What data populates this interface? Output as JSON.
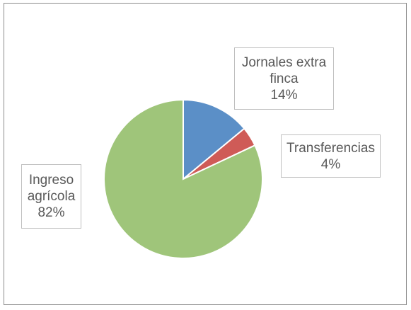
{
  "chart_data": {
    "type": "pie",
    "categories": [
      "Jornales extra finca",
      "Transferencias",
      "Ingreso agrícola"
    ],
    "values": [
      14,
      4,
      82
    ],
    "labels": [
      {
        "lines": [
          "Jornales extra",
          "finca"
        ],
        "pct": "14%"
      },
      {
        "lines": [
          "Transferencias"
        ],
        "pct": "4%"
      },
      {
        "lines": [
          "Ingreso",
          "agrícola"
        ],
        "pct": "82%"
      }
    ],
    "colors": [
      "#5b8fc7",
      "#cf5b57",
      "#9fc57a"
    ],
    "title": "",
    "legend": "none"
  }
}
